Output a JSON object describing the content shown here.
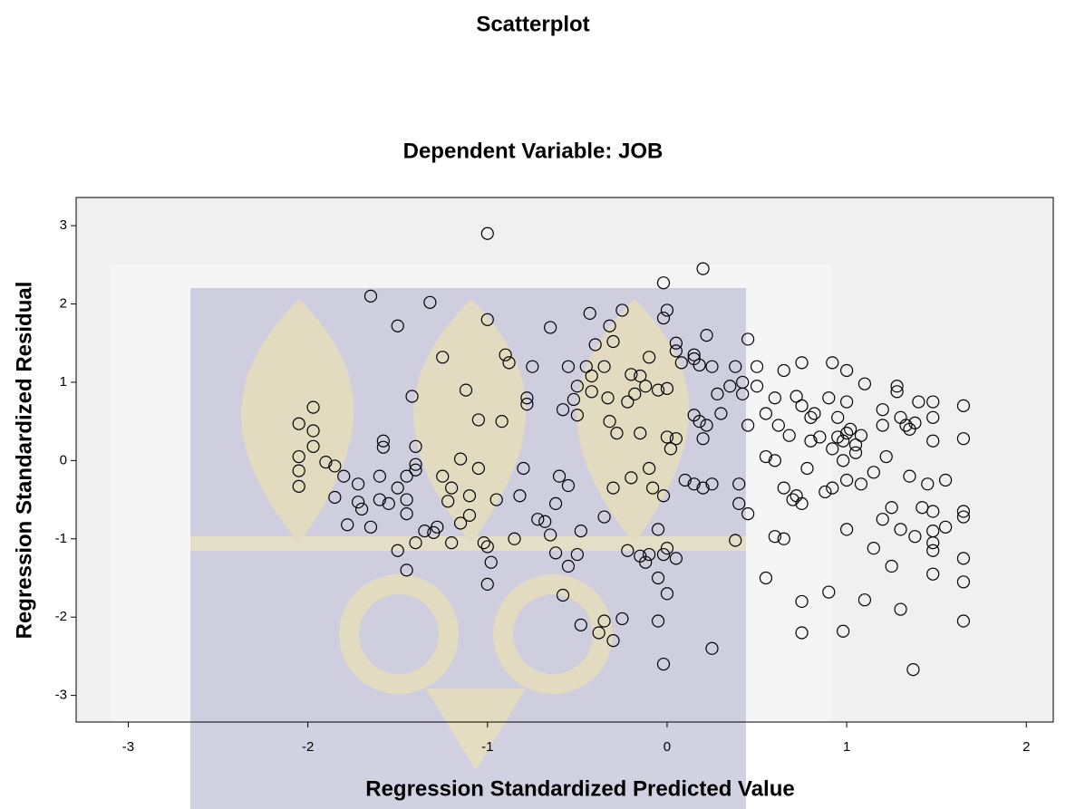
{
  "chart_data": {
    "type": "scatter",
    "title": "Scatterplot",
    "subtitle": "Dependent Variable: JOB",
    "x_label": "Regression Standardized Predicted Value",
    "y_label": "Regression Standardized Residual",
    "xlim": [
      -3.29,
      2.15
    ],
    "ylim": [
      -3.34,
      3.36
    ],
    "xticks": [
      -3,
      -2,
      -1,
      0,
      1,
      2
    ],
    "yticks": [
      -3,
      -2,
      -1,
      0,
      1,
      2,
      3
    ],
    "marker_color": "#000000",
    "background": "#f0f0f0",
    "x": [
      -2.05,
      -2.05,
      -2.05,
      -2.05,
      -1.97,
      -1.97,
      -1.97,
      -1.9,
      -1.85,
      -1.8,
      -1.85,
      -1.78,
      -1.72,
      -1.72,
      -1.7,
      -1.65,
      -1.65,
      -1.6,
      -1.6,
      -1.55,
      -1.58,
      -1.58,
      -1.5,
      -1.5,
      -1.5,
      -1.45,
      -1.45,
      -1.45,
      -1.45,
      -1.42,
      -1.4,
      -1.4,
      -1.4,
      -1.4,
      -1.35,
      -1.32,
      -1.3,
      -1.28,
      -1.25,
      -1.25,
      -1.22,
      -1.2,
      -1.2,
      -1.15,
      -1.15,
      -1.12,
      -1.1,
      -1.1,
      -1.05,
      -1.05,
      -1.02,
      -1.0,
      -1.0,
      -1.0,
      -1.0,
      -0.98,
      -0.95,
      -0.92,
      -0.9,
      -0.88,
      -0.85,
      -0.82,
      -0.8,
      -0.78,
      -0.78,
      -0.75,
      -0.72,
      -0.68,
      -0.65,
      -0.62,
      -0.62,
      -0.65,
      -0.6,
      -0.58,
      -0.58,
      -0.55,
      -0.55,
      -0.55,
      -0.52,
      -0.5,
      -0.5,
      -0.5,
      -0.48,
      -0.48,
      -0.45,
      -0.42,
      -0.42,
      -0.4,
      -0.43,
      -0.38,
      -0.35,
      -0.35,
      -0.35,
      -0.33,
      -0.32,
      -0.3,
      -0.3,
      -0.32,
      -0.28,
      -0.3,
      -0.25,
      -0.22,
      -0.22,
      -0.2,
      -0.2,
      -0.25,
      -0.18,
      -0.15,
      -0.15,
      -0.15,
      -0.12,
      -0.12,
      -0.1,
      -0.1,
      -0.05,
      -0.02,
      -0.05,
      -0.05,
      -0.02,
      -0.1,
      -0.08,
      -0.05,
      0.0,
      -0.02,
      0.0,
      0.05,
      -0.02,
      0.0,
      0.02,
      0.05,
      0.0,
      -0.02,
      0.05,
      0.05,
      0.08,
      0.15,
      0.15,
      0.18,
      0.2,
      0.22,
      0.25,
      0.28,
      0.3,
      0.35,
      0.38,
      0.45,
      0.42,
      0.42,
      0.45,
      0.5,
      0.5,
      0.15,
      0.18,
      0.2,
      0.22,
      0.0,
      0.1,
      0.15,
      0.2,
      0.25,
      0.4,
      0.4,
      0.45,
      0.38,
      0.25,
      0.55,
      0.55,
      0.6,
      0.6,
      0.55,
      0.6,
      0.65,
      0.62,
      0.68,
      0.65,
      0.65,
      0.7,
      0.72,
      0.72,
      0.75,
      0.75,
      0.75,
      0.75,
      0.75,
      0.78,
      0.8,
      0.8,
      0.82,
      0.85,
      0.88,
      0.9,
      0.92,
      0.9,
      0.92,
      0.92,
      0.95,
      0.95,
      0.98,
      0.98,
      0.98,
      1.0,
      1.0,
      1.0,
      1.0,
      1.0,
      1.02,
      1.05,
      1.05,
      1.08,
      1.08,
      1.1,
      1.1,
      1.15,
      1.15,
      1.2,
      1.2,
      1.2,
      1.22,
      1.25,
      1.25,
      1.28,
      1.28,
      1.3,
      1.3,
      1.3,
      1.33,
      1.35,
      1.35,
      1.38,
      1.38,
      1.37,
      1.4,
      1.42,
      1.45,
      1.48,
      1.48,
      1.48,
      1.48,
      1.48,
      1.48,
      1.48,
      1.48,
      1.55,
      1.55,
      1.65,
      1.65,
      1.65,
      1.65,
      1.65,
      1.65,
      1.65
    ],
    "values": [
      0.47,
      0.05,
      -0.13,
      -0.33,
      0.68,
      0.38,
      0.18,
      -0.02,
      -0.07,
      -0.2,
      -0.47,
      -0.82,
      -0.3,
      -0.53,
      -0.62,
      2.1,
      -0.85,
      -0.2,
      -0.5,
      -0.55,
      0.25,
      0.17,
      -0.35,
      -1.15,
      1.72,
      -0.2,
      -0.5,
      -0.68,
      -1.4,
      0.82,
      0.18,
      -0.05,
      -0.12,
      -1.05,
      -0.9,
      2.02,
      -0.92,
      -0.85,
      1.32,
      -0.2,
      -0.52,
      -0.35,
      -1.05,
      -0.8,
      0.02,
      0.9,
      -0.45,
      -0.7,
      0.52,
      -0.1,
      -1.05,
      -1.1,
      -1.58,
      1.8,
      2.9,
      -1.3,
      -0.5,
      0.5,
      1.35,
      1.25,
      -1.0,
      -0.45,
      -0.1,
      0.8,
      0.72,
      1.2,
      -0.75,
      -0.78,
      -0.95,
      -0.55,
      -1.18,
      1.7,
      -0.2,
      -1.72,
      0.65,
      -0.32,
      -1.35,
      1.2,
      0.78,
      -1.2,
      0.58,
      0.95,
      -0.9,
      -2.1,
      1.2,
      1.08,
      0.88,
      1.48,
      1.88,
      -2.2,
      -0.72,
      -2.05,
      1.2,
      0.8,
      0.5,
      -0.35,
      -2.3,
      1.72,
      0.35,
      1.52,
      -2.02,
      -1.15,
      0.75,
      -0.22,
      1.1,
      1.92,
      0.85,
      -1.22,
      0.35,
      1.08,
      -1.3,
      0.95,
      -1.2,
      1.32,
      -0.88,
      -1.2,
      -1.5,
      0.9,
      -0.45,
      -0.1,
      -0.35,
      -2.05,
      0.92,
      1.82,
      -1.7,
      0.28,
      -2.6,
      -1.12,
      0.15,
      -1.25,
      1.92,
      2.27,
      1.5,
      1.4,
      1.25,
      1.35,
      1.3,
      1.22,
      2.45,
      1.6,
      1.2,
      0.85,
      0.6,
      0.95,
      1.2,
      1.55,
      1.0,
      0.85,
      0.45,
      1.2,
      0.95,
      0.58,
      0.5,
      0.28,
      0.45,
      0.3,
      -0.25,
      -0.3,
      -0.35,
      -0.3,
      -0.3,
      -0.55,
      -0.68,
      -1.02,
      -2.4,
      0.6,
      0.05,
      0.0,
      -0.97,
      -1.5,
      0.8,
      1.15,
      0.45,
      0.32,
      -0.35,
      -1.0,
      -0.5,
      -0.45,
      0.82,
      1.25,
      0.7,
      -0.55,
      -1.8,
      -2.2,
      -0.1,
      0.55,
      0.25,
      0.6,
      0.3,
      -0.4,
      0.8,
      -0.35,
      -1.68,
      1.25,
      0.15,
      0.55,
      0.3,
      0.25,
      0.0,
      -2.18,
      1.15,
      0.75,
      0.35,
      -0.25,
      -0.88,
      0.4,
      0.2,
      0.1,
      0.32,
      -0.3,
      0.98,
      -1.78,
      -0.15,
      -1.12,
      0.45,
      0.65,
      -0.75,
      0.05,
      -0.6,
      -1.35,
      0.95,
      0.88,
      0.55,
      -0.88,
      -1.9,
      0.45,
      0.4,
      -0.2,
      0.48,
      -0.97,
      -2.67,
      0.75,
      -0.6,
      -0.3,
      0.75,
      0.55,
      0.25,
      -0.65,
      -0.9,
      -1.05,
      -1.15,
      -1.45,
      -0.25,
      -0.85,
      0.7,
      0.28,
      -0.65,
      -0.72,
      -1.25,
      -1.55,
      -2.05
    ]
  }
}
